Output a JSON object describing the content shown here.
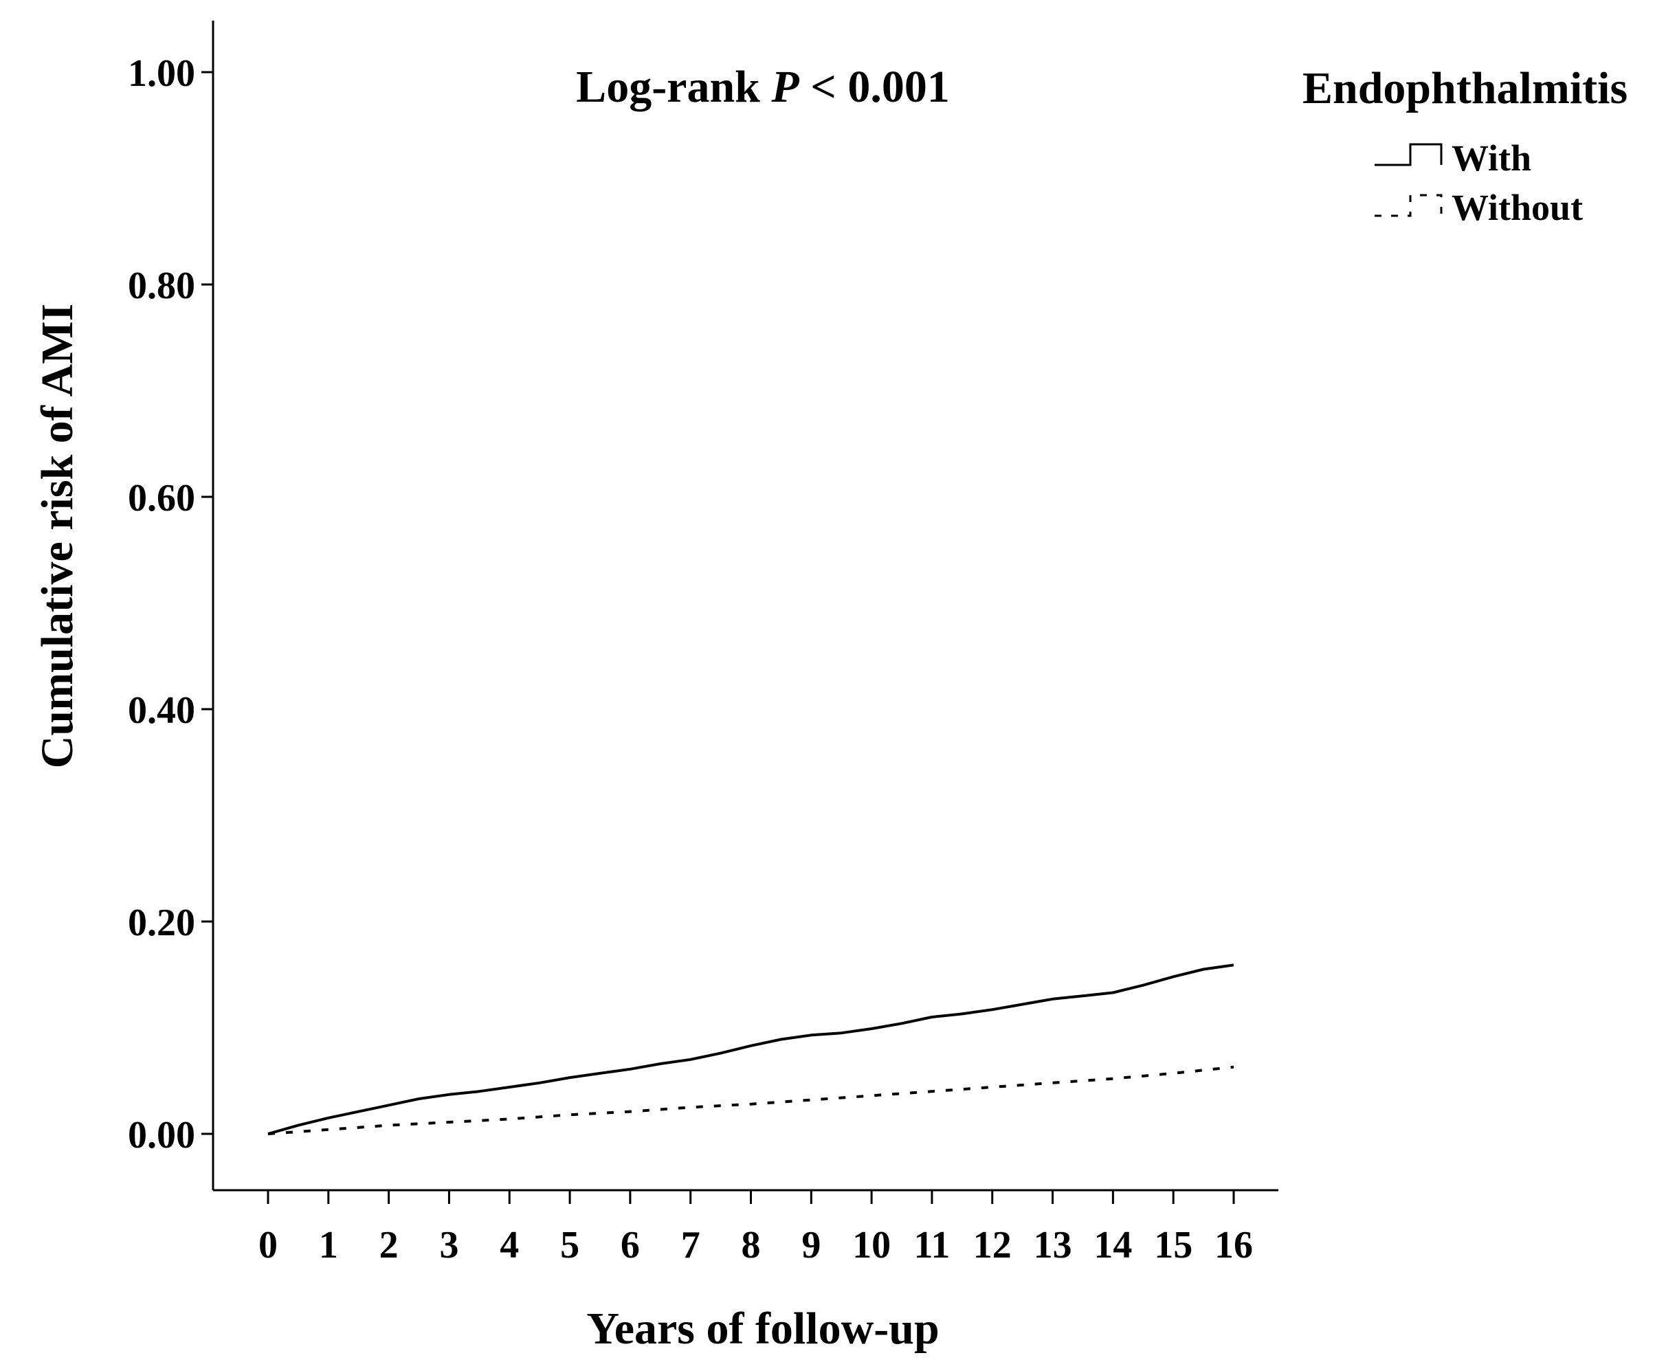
{
  "chart_data": {
    "type": "line",
    "annotation": {
      "prefix": "Log-rank ",
      "p_symbol": "P",
      "suffix": " < 0.001"
    },
    "xlabel": "Years of follow-up",
    "ylabel": "Cumulative risk of AMI",
    "xlim": [
      0,
      16
    ],
    "ylim": [
      -0.055,
      1.05
    ],
    "x_ticks": [
      "0",
      "1",
      "2",
      "3",
      "4",
      "5",
      "6",
      "7",
      "8",
      "9",
      "10",
      "11",
      "12",
      "13",
      "14",
      "15",
      "16"
    ],
    "y_ticks": [
      "0.00",
      "0.20",
      "0.40",
      "0.60",
      "0.80",
      "1.00"
    ],
    "legend": {
      "title": "Endophthalmitis",
      "position": "top-right",
      "entries": [
        "With",
        "Without"
      ]
    },
    "series": [
      {
        "name": "With",
        "style": "solid",
        "x": [
          0,
          0.5,
          1,
          1.5,
          2,
          2.5,
          3,
          3.5,
          4,
          4.5,
          5,
          5.5,
          6,
          6.5,
          7,
          7.5,
          8,
          8.5,
          9,
          9.5,
          10,
          10.5,
          11,
          11.5,
          12,
          12.5,
          13,
          13.5,
          14,
          14.5,
          15,
          15.5,
          16
        ],
        "y": [
          0.0,
          0.008,
          0.015,
          0.021,
          0.027,
          0.033,
          0.037,
          0.04,
          0.044,
          0.048,
          0.053,
          0.057,
          0.061,
          0.066,
          0.07,
          0.076,
          0.083,
          0.089,
          0.093,
          0.095,
          0.099,
          0.104,
          0.11,
          0.113,
          0.117,
          0.122,
          0.127,
          0.13,
          0.133,
          0.14,
          0.148,
          0.155,
          0.159
        ]
      },
      {
        "name": "Without",
        "style": "dashed",
        "x": [
          0,
          1,
          2,
          3,
          4,
          5,
          6,
          7,
          8,
          9,
          10,
          11,
          12,
          13,
          14,
          15,
          16
        ],
        "y": [
          0.0,
          0.004,
          0.008,
          0.011,
          0.014,
          0.018,
          0.021,
          0.025,
          0.028,
          0.032,
          0.036,
          0.04,
          0.044,
          0.048,
          0.052,
          0.057,
          0.063
        ]
      }
    ],
    "grid": false
  }
}
